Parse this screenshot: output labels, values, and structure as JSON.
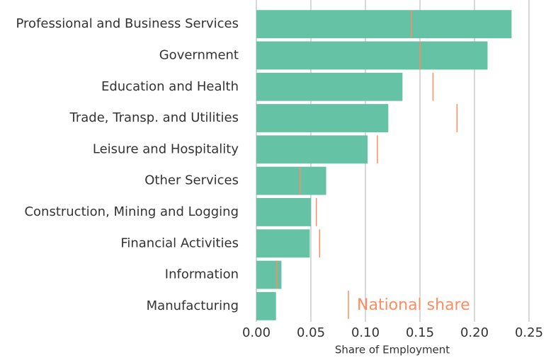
{
  "chart_data": {
    "type": "bar",
    "orientation": "horizontal",
    "categories": [
      "Professional and Business Services",
      "Government",
      "Education and Health",
      "Trade, Transp. and Utilities",
      "Leisure and Hospitality",
      "Other Services",
      "Construction, Mining and Logging",
      "Financial Activities",
      "Information",
      "Manufacturing"
    ],
    "values": [
      0.234,
      0.212,
      0.134,
      0.121,
      0.102,
      0.064,
      0.05,
      0.049,
      0.023,
      0.018
    ],
    "color": "#66c2a5",
    "markers": {
      "name": "National share",
      "color": "#fc8d62",
      "values": [
        0.142,
        0.15,
        0.162,
        0.184,
        0.111,
        0.04,
        0.055,
        0.058,
        0.019,
        null
      ]
    },
    "xlabel": "Share of Employment",
    "xlim": [
      0,
      0.25
    ],
    "xticks": [
      {
        "value": 0,
        "label": "0.00"
      },
      {
        "value": 0.05,
        "label": "0.05"
      },
      {
        "value": 0.1,
        "label": "0.10"
      },
      {
        "value": 0.15,
        "label": "0.15"
      },
      {
        "value": 0.2,
        "label": "0.20"
      },
      {
        "value": 0.25,
        "label": "0.25"
      }
    ],
    "grid": true
  }
}
